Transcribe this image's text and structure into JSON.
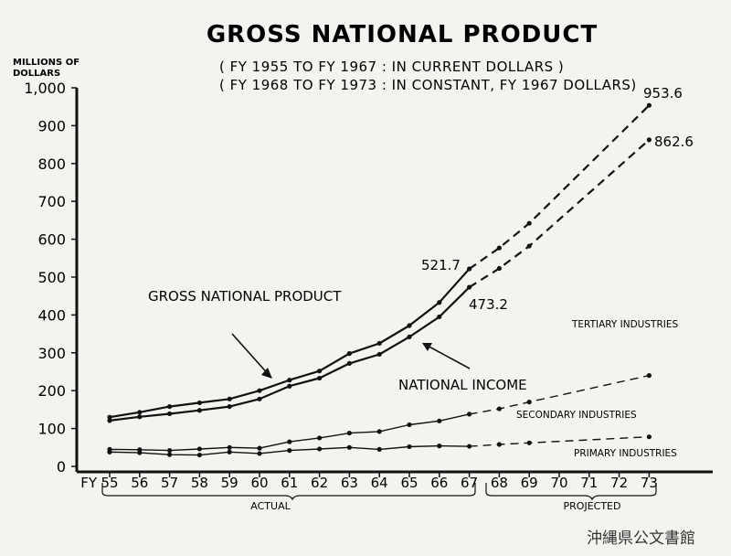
{
  "chart_data": {
    "type": "line",
    "title": "GROSS NATIONAL PRODUCT",
    "subtitle_lines": [
      "( FY 1955 TO FY 1967 : IN CURRENT DOLLARS )",
      "( FY 1968 TO FY 1973 : IN CONSTANT, FY 1967 DOLLARS)"
    ],
    "ylabel_lines": [
      "MILLIONS OF",
      "DOLLARS"
    ],
    "ylim": [
      0,
      1000
    ],
    "yticks": [
      {
        "value": 0,
        "label": "0"
      },
      {
        "value": 100,
        "label": "100"
      },
      {
        "value": 200,
        "label": "200"
      },
      {
        "value": 300,
        "label": "300"
      },
      {
        "value": 400,
        "label": "400"
      },
      {
        "value": 500,
        "label": "500"
      },
      {
        "value": 600,
        "label": "600"
      },
      {
        "value": 700,
        "label": "700"
      },
      {
        "value": 800,
        "label": "800"
      },
      {
        "value": 900,
        "label": "900"
      },
      {
        "value": 1000,
        "label": "1,000"
      }
    ],
    "x_prefix": "FY",
    "x": [
      "55",
      "56",
      "57",
      "58",
      "59",
      "60",
      "61",
      "62",
      "63",
      "64",
      "65",
      "66",
      "67",
      "68",
      "69",
      "70",
      "71",
      "72",
      "73"
    ],
    "x_index_range": [
      0,
      18
    ],
    "grid": false,
    "series": [
      {
        "name": "GROSS NATIONAL PRODUCT",
        "actual": [
          [
            0,
            130
          ],
          [
            1,
            143
          ],
          [
            2,
            158
          ],
          [
            3,
            168
          ],
          [
            4,
            178
          ],
          [
            5,
            200
          ],
          [
            6,
            228
          ],
          [
            7,
            252
          ],
          [
            8,
            298
          ],
          [
            9,
            325
          ],
          [
            10,
            372
          ],
          [
            11,
            433
          ],
          [
            12,
            521.7
          ]
        ],
        "projected": [
          [
            12,
            521.7
          ],
          [
            13,
            577
          ],
          [
            14,
            642
          ],
          [
            18,
            953.6
          ]
        ],
        "endpoint_labels": [
          "521.7",
          "953.6"
        ]
      },
      {
        "name": "NATIONAL INCOME",
        "actual": [
          [
            0,
            121
          ],
          [
            1,
            131
          ],
          [
            2,
            139
          ],
          [
            3,
            148
          ],
          [
            4,
            158
          ],
          [
            5,
            178
          ],
          [
            6,
            212
          ],
          [
            7,
            233
          ],
          [
            8,
            272
          ],
          [
            9,
            296
          ],
          [
            10,
            342
          ],
          [
            11,
            395
          ],
          [
            12,
            473.2
          ]
        ],
        "projected": [
          [
            12,
            473.2
          ],
          [
            13,
            523
          ],
          [
            14,
            582
          ],
          [
            18,
            862.6
          ]
        ],
        "endpoint_labels": [
          "473.2",
          "862.6"
        ]
      },
      {
        "name": "SECONDARY INDUSTRIES",
        "actual": [
          [
            0,
            45
          ],
          [
            1,
            44
          ],
          [
            2,
            42
          ],
          [
            3,
            46
          ],
          [
            4,
            50
          ],
          [
            5,
            48
          ],
          [
            6,
            65
          ],
          [
            7,
            75
          ],
          [
            8,
            88
          ],
          [
            9,
            92
          ],
          [
            10,
            110
          ],
          [
            11,
            120
          ],
          [
            12,
            138
          ]
        ],
        "projected": [
          [
            12,
            138
          ],
          [
            13,
            152
          ],
          [
            14,
            170
          ],
          [
            18,
            240
          ]
        ]
      },
      {
        "name": "PRIMARY INDUSTRIES",
        "actual": [
          [
            0,
            38
          ],
          [
            1,
            36
          ],
          [
            2,
            31
          ],
          [
            3,
            30
          ],
          [
            4,
            38
          ],
          [
            5,
            34
          ],
          [
            6,
            42
          ],
          [
            7,
            46
          ],
          [
            8,
            50
          ],
          [
            9,
            45
          ],
          [
            10,
            52
          ],
          [
            11,
            54
          ],
          [
            12,
            53
          ]
        ],
        "projected": [
          [
            12,
            53
          ],
          [
            13,
            58
          ],
          [
            14,
            62
          ],
          [
            18,
            78
          ]
        ]
      }
    ],
    "annotations": {
      "tertiary_label": "TERTIARY INDUSTRIES"
    },
    "periods": [
      {
        "label": "ACTUAL",
        "from": 0,
        "to": 12
      },
      {
        "label": "PROJECTED",
        "from": 13,
        "to": 18
      }
    ]
  },
  "watermark": "沖縄県公文書館"
}
